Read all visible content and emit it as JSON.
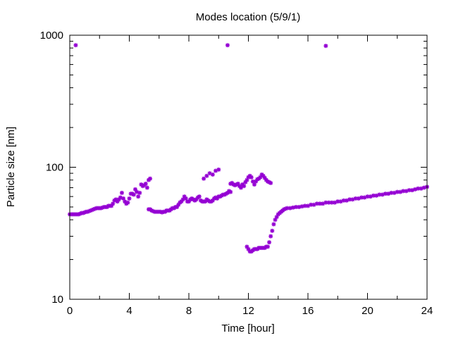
{
  "chart_data": {
    "type": "scatter",
    "title": "Modes location (5/9/1)",
    "xlabel": "Time [hour]",
    "ylabel": "Particle size [nm]",
    "xlim": [
      0,
      24
    ],
    "ylim": [
      10,
      1000
    ],
    "yscale": "log",
    "grid": false,
    "legend": "none",
    "marker": "star",
    "color": "#9400d3",
    "x_ticks": [
      0,
      4,
      8,
      12,
      16,
      20,
      24
    ],
    "x_tick_labels": [
      "0",
      "4",
      "8",
      "12",
      "16",
      "20",
      "24"
    ],
    "y_ticks": [
      10,
      100,
      1000
    ],
    "y_tick_labels": [
      "10",
      "100",
      "1000"
    ],
    "series": [
      {
        "points": [
          [
            0.0,
            44
          ],
          [
            0.1,
            44
          ],
          [
            0.2,
            44
          ],
          [
            0.3,
            44
          ],
          [
            0.4,
            44
          ],
          [
            0.5,
            44
          ],
          [
            0.6,
            44
          ],
          [
            0.7,
            44.5
          ],
          [
            0.8,
            45
          ],
          [
            0.9,
            45
          ],
          [
            1.0,
            45.5
          ],
          [
            1.1,
            46
          ],
          [
            1.2,
            46
          ],
          [
            1.3,
            46.5
          ],
          [
            1.4,
            47
          ],
          [
            1.5,
            47.5
          ],
          [
            1.6,
            48
          ],
          [
            1.7,
            48.5
          ],
          [
            1.8,
            49
          ],
          [
            1.9,
            49
          ],
          [
            2.0,
            49
          ],
          [
            2.1,
            49
          ],
          [
            2.2,
            49.5
          ],
          [
            2.3,
            50
          ],
          [
            2.4,
            50
          ],
          [
            2.5,
            50
          ],
          [
            2.6,
            51
          ],
          [
            2.7,
            51
          ],
          [
            2.8,
            51
          ],
          [
            2.9,
            53
          ],
          [
            3.0,
            56
          ],
          [
            3.1,
            57
          ],
          [
            3.2,
            55
          ],
          [
            3.3,
            57
          ],
          [
            3.4,
            59
          ],
          [
            3.5,
            64
          ],
          [
            3.6,
            58
          ],
          [
            3.7,
            55
          ],
          [
            3.8,
            53
          ],
          [
            3.9,
            54
          ],
          [
            4.0,
            58
          ],
          [
            4.1,
            63
          ],
          [
            4.2,
            63
          ],
          [
            4.3,
            62
          ],
          [
            4.4,
            68
          ],
          [
            4.5,
            65
          ],
          [
            4.6,
            60
          ],
          [
            4.7,
            64
          ],
          [
            4.8,
            74
          ],
          [
            4.9,
            72
          ],
          [
            5.0,
            73
          ],
          [
            5.1,
            75
          ],
          [
            5.2,
            70
          ],
          [
            5.3,
            80
          ],
          [
            5.4,
            82
          ],
          [
            0.4,
            840
          ],
          [
            10.6,
            840
          ],
          [
            17.2,
            830
          ],
          [
            5.3,
            48
          ],
          [
            5.4,
            48
          ],
          [
            5.5,
            47
          ],
          [
            5.6,
            46.5
          ],
          [
            5.7,
            46
          ],
          [
            5.8,
            46
          ],
          [
            5.9,
            46
          ],
          [
            6.0,
            46
          ],
          [
            6.1,
            46
          ],
          [
            6.2,
            45.5
          ],
          [
            6.3,
            46
          ],
          [
            6.4,
            46
          ],
          [
            6.5,
            47
          ],
          [
            6.6,
            47
          ],
          [
            6.7,
            47
          ],
          [
            6.8,
            48
          ],
          [
            6.9,
            49
          ],
          [
            7.0,
            49
          ],
          [
            7.1,
            50
          ],
          [
            7.2,
            50
          ],
          [
            7.3,
            52
          ],
          [
            7.4,
            54
          ],
          [
            7.5,
            55
          ],
          [
            7.6,
            57
          ],
          [
            7.7,
            60
          ],
          [
            7.8,
            58
          ],
          [
            7.9,
            55
          ],
          [
            8.0,
            55
          ],
          [
            8.1,
            57
          ],
          [
            8.2,
            58
          ],
          [
            8.3,
            57
          ],
          [
            8.4,
            56
          ],
          [
            8.5,
            57
          ],
          [
            8.6,
            59
          ],
          [
            8.7,
            60
          ],
          [
            8.8,
            56
          ],
          [
            8.9,
            55
          ],
          [
            9.0,
            55
          ],
          [
            9.1,
            55
          ],
          [
            9.2,
            57
          ],
          [
            9.3,
            56
          ],
          [
            9.4,
            55
          ],
          [
            9.5,
            55
          ],
          [
            9.6,
            56
          ],
          [
            9.7,
            58
          ],
          [
            9.8,
            59
          ],
          [
            9.9,
            58
          ],
          [
            10.0,
            60
          ],
          [
            10.1,
            60
          ],
          [
            10.2,
            61
          ],
          [
            10.3,
            62
          ],
          [
            10.4,
            62
          ],
          [
            10.5,
            63
          ],
          [
            10.6,
            64
          ],
          [
            10.7,
            66
          ],
          [
            10.8,
            65
          ],
          [
            9.0,
            82
          ],
          [
            9.2,
            86
          ],
          [
            9.4,
            90
          ],
          [
            9.8,
            94
          ],
          [
            10.0,
            96
          ],
          [
            9.6,
            88
          ],
          [
            10.8,
            75
          ],
          [
            10.9,
            76
          ],
          [
            11.0,
            74
          ],
          [
            11.1,
            73
          ],
          [
            11.2,
            74
          ],
          [
            11.3,
            75
          ],
          [
            11.4,
            72
          ],
          [
            11.5,
            70
          ],
          [
            11.6,
            74
          ],
          [
            11.7,
            72
          ],
          [
            11.8,
            77
          ],
          [
            11.9,
            80
          ],
          [
            12.0,
            84
          ],
          [
            12.1,
            86
          ],
          [
            12.2,
            84
          ],
          [
            12.3,
            78
          ],
          [
            12.4,
            74
          ],
          [
            12.5,
            78
          ],
          [
            12.6,
            81
          ],
          [
            12.7,
            82
          ],
          [
            12.8,
            84
          ],
          [
            12.9,
            88
          ],
          [
            13.0,
            86
          ],
          [
            13.1,
            83
          ],
          [
            13.2,
            80
          ],
          [
            13.3,
            78
          ],
          [
            13.4,
            77
          ],
          [
            13.5,
            76
          ],
          [
            11.9,
            25
          ],
          [
            12.0,
            24
          ],
          [
            12.1,
            23
          ],
          [
            12.2,
            23
          ],
          [
            12.3,
            23.5
          ],
          [
            12.4,
            24
          ],
          [
            12.5,
            24
          ],
          [
            12.6,
            24
          ],
          [
            12.7,
            24.5
          ],
          [
            12.8,
            24.5
          ],
          [
            12.9,
            24.5
          ],
          [
            13.0,
            24.5
          ],
          [
            13.1,
            24.5
          ],
          [
            13.2,
            25
          ],
          [
            13.3,
            25
          ],
          [
            13.4,
            27
          ],
          [
            13.5,
            30
          ],
          [
            13.6,
            33
          ],
          [
            13.7,
            37
          ],
          [
            13.8,
            40
          ],
          [
            13.9,
            42
          ],
          [
            14.0,
            44
          ],
          [
            14.1,
            45
          ],
          [
            14.2,
            46
          ],
          [
            14.3,
            47
          ],
          [
            14.4,
            48
          ],
          [
            14.5,
            48.5
          ],
          [
            14.6,
            49
          ],
          [
            14.8,
            49
          ],
          [
            15.0,
            49.5
          ],
          [
            15.2,
            50
          ],
          [
            15.4,
            50
          ],
          [
            15.6,
            50.5
          ],
          [
            15.8,
            51
          ],
          [
            16.0,
            51
          ],
          [
            16.2,
            52
          ],
          [
            16.4,
            52
          ],
          [
            16.6,
            53
          ],
          [
            16.8,
            53
          ],
          [
            17.0,
            53
          ],
          [
            17.2,
            54
          ],
          [
            17.4,
            54
          ],
          [
            17.6,
            54
          ],
          [
            17.8,
            54
          ],
          [
            18.0,
            55
          ],
          [
            18.2,
            55
          ],
          [
            18.4,
            56
          ],
          [
            18.6,
            56
          ],
          [
            18.8,
            57
          ],
          [
            19.0,
            57
          ],
          [
            19.2,
            58
          ],
          [
            19.4,
            58
          ],
          [
            19.6,
            59
          ],
          [
            19.8,
            59
          ],
          [
            20.0,
            60
          ],
          [
            20.2,
            60
          ],
          [
            20.4,
            61
          ],
          [
            20.6,
            61
          ],
          [
            20.8,
            62
          ],
          [
            21.0,
            62
          ],
          [
            21.2,
            63
          ],
          [
            21.4,
            63
          ],
          [
            21.6,
            64
          ],
          [
            21.8,
            64
          ],
          [
            22.0,
            65
          ],
          [
            22.2,
            65
          ],
          [
            22.4,
            66
          ],
          [
            22.6,
            66
          ],
          [
            22.8,
            67
          ],
          [
            23.0,
            67
          ],
          [
            23.2,
            68
          ],
          [
            23.4,
            69
          ],
          [
            23.6,
            69
          ],
          [
            23.8,
            70
          ],
          [
            24.0,
            71
          ]
        ]
      }
    ]
  }
}
